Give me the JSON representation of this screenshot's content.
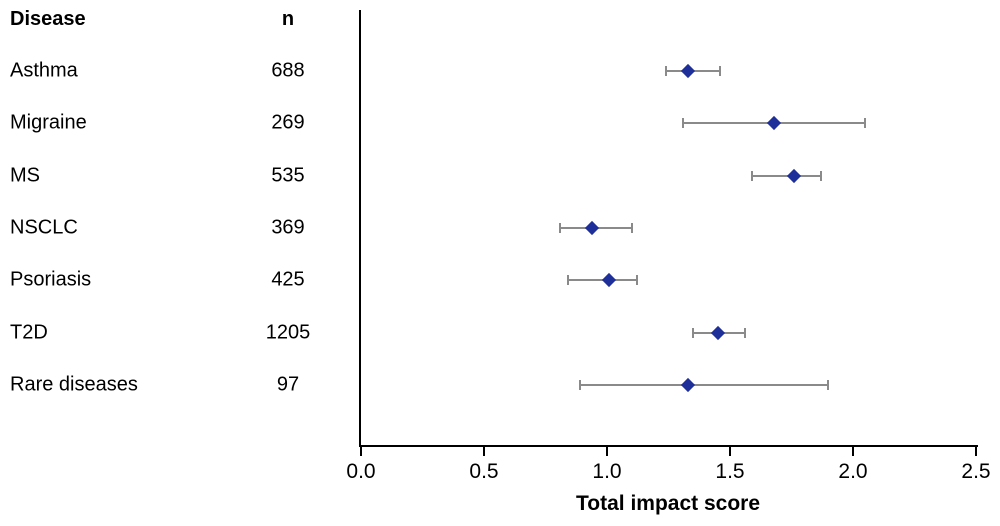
{
  "table": {
    "disease_header": "Disease",
    "n_header": "n"
  },
  "chart_data": {
    "type": "scatter",
    "subtype": "forest-plot",
    "title": "",
    "xlabel": "Total impact score",
    "ylabel": "",
    "xlim": [
      0.0,
      2.5
    ],
    "xticks": [
      "0.0",
      "0.5",
      "1.0",
      "1.5",
      "2.0",
      "2.5"
    ],
    "grid": false,
    "marker": "diamond",
    "rows": [
      {
        "disease": "Asthma",
        "n": "688",
        "estimate": 1.33,
        "ci_low": 1.24,
        "ci_high": 1.46
      },
      {
        "disease": "Migraine",
        "n": "269",
        "estimate": 1.68,
        "ci_low": 1.31,
        "ci_high": 2.05
      },
      {
        "disease": "MS",
        "n": "535",
        "estimate": 1.76,
        "ci_low": 1.59,
        "ci_high": 1.87
      },
      {
        "disease": "NSCLC",
        "n": "369",
        "estimate": 0.94,
        "ci_low": 0.81,
        "ci_high": 1.1
      },
      {
        "disease": "Psoriasis",
        "n": "425",
        "estimate": 1.01,
        "ci_low": 0.84,
        "ci_high": 1.12
      },
      {
        "disease": "T2D",
        "n": "1205",
        "estimate": 1.45,
        "ci_low": 1.35,
        "ci_high": 1.56
      },
      {
        "disease": "Rare diseases",
        "n": "97",
        "estimate": 1.33,
        "ci_low": 0.89,
        "ci_high": 1.9
      }
    ],
    "colors": {
      "marker": "#1e2f99",
      "error_bar": "#8a8a8a",
      "axis": "#000000",
      "text": "#000000"
    }
  }
}
